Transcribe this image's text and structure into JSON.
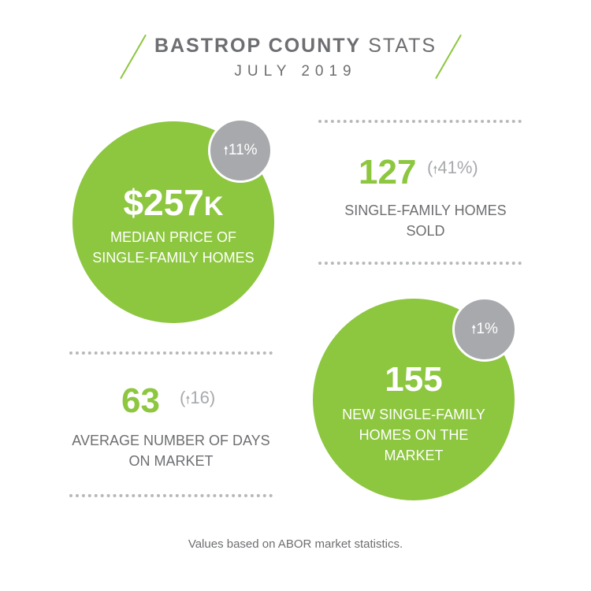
{
  "header": {
    "title_bold": "BASTROP COUNTY",
    "title_light": "STATS",
    "subtitle": "JULY 2019"
  },
  "median_price": {
    "value": "$257",
    "unit": "K",
    "label": "MEDIAN PRICE OF SINGLE-FAMILY HOMES",
    "change": "11%",
    "direction": "up"
  },
  "homes_sold": {
    "value": "127",
    "change": "41%",
    "direction": "up",
    "label": "SINGLE-FAMILY HOMES SOLD"
  },
  "new_listings": {
    "value": "155",
    "label": "NEW SINGLE-FAMILY HOMES ON THE MARKET",
    "change": "1%",
    "direction": "up"
  },
  "days_on_market": {
    "value": "63",
    "change": "16",
    "direction": "up",
    "label": "AVERAGE NUMBER OF DAYS ON MARKET"
  },
  "footer": "Values based on ABOR market statistics.",
  "colors": {
    "accent_green": "#8dc63f",
    "badge_gray": "#a7a9ac",
    "text_gray": "#6d6e71"
  },
  "icons": [
    "up-arrow-icon",
    "slash-decoration"
  ]
}
